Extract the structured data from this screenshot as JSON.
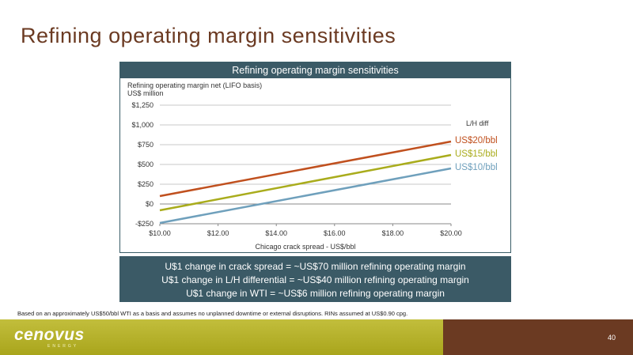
{
  "slide": {
    "title": "Refining operating margin sensitivities",
    "footnote": "Based on an approximately US$50/bbl WTI as a basis and assumes no unplanned downtime or external disruptions. RINs assumed at US$0.90 cpg.",
    "page_number": "40",
    "logo_text": "cenovus",
    "logo_subtext": "ENERGY"
  },
  "chart_panel": {
    "header": "Refining operating margin sensitivities"
  },
  "chart_data": {
    "type": "line",
    "ylabel_line1": "Refining operating margin net (LIFO basis)",
    "ylabel_line2": "US$ million",
    "xlabel": "Chicago crack spread - US$/bbl",
    "legend_title": "L/H diff",
    "xlim": [
      10,
      20
    ],
    "ylim": [
      -250,
      1250
    ],
    "x_ticks": [
      10,
      12,
      14,
      16,
      18,
      20
    ],
    "x_tick_labels": [
      "$10.00",
      "$12.00",
      "$14.00",
      "$16.00",
      "$18.00",
      "$20.00"
    ],
    "y_ticks": [
      -250,
      0,
      250,
      500,
      750,
      1000,
      1250
    ],
    "y_tick_labels": [
      "-$250",
      "$0",
      "$250",
      "$500",
      "$750",
      "$1,000",
      "$1,250"
    ],
    "grid": true,
    "series": [
      {
        "name": "US$20/bbl",
        "color": "#c0501e",
        "x": [
          10,
          20
        ],
        "y": [
          100,
          790
        ]
      },
      {
        "name": "US$15/bbl",
        "color": "#a9ac1c",
        "x": [
          10,
          20
        ],
        "y": [
          -80,
          620
        ]
      },
      {
        "name": "US$10/bbl",
        "color": "#6fa0bc",
        "x": [
          10,
          20
        ],
        "y": [
          -240,
          450
        ]
      }
    ]
  },
  "summary": {
    "lines": [
      "U$1 change in crack spread = ~US$70 million refining operating margin",
      "U$1 change in L/H differential = ~US$40 million refining operating margin",
      "U$1 change in WTI = ~US$6 million refining operating margin"
    ]
  }
}
